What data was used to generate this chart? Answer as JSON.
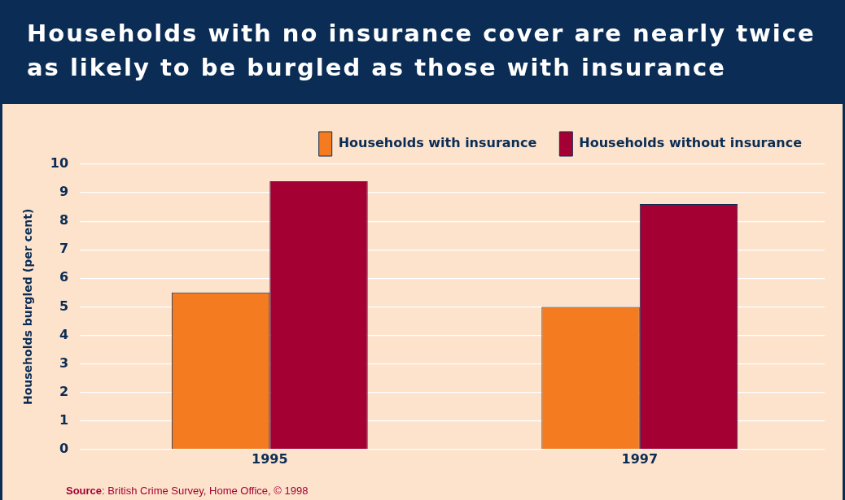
{
  "chart_data": {
    "type": "bar",
    "title": "Households with no insurance cover are nearly twice as likely to be burgled as those with insurance",
    "ylabel": "Households burgled (per cent)",
    "categories": [
      "1995",
      "1997"
    ],
    "series": [
      {
        "name": "Households with insurance",
        "color": "#f47b20",
        "values": [
          5.5,
          5.0
        ]
      },
      {
        "name": "Households without insurance",
        "color": "#a50034",
        "values": [
          9.4,
          8.6
        ]
      }
    ],
    "ylim": [
      0,
      10
    ],
    "yticks": [
      0,
      1,
      2,
      3,
      4,
      5,
      6,
      7,
      8,
      9,
      10
    ],
    "grid": "y",
    "legend": "top right",
    "annotations": [
      "Source: British Crime Survey, Home Office, © 1998"
    ]
  }
}
